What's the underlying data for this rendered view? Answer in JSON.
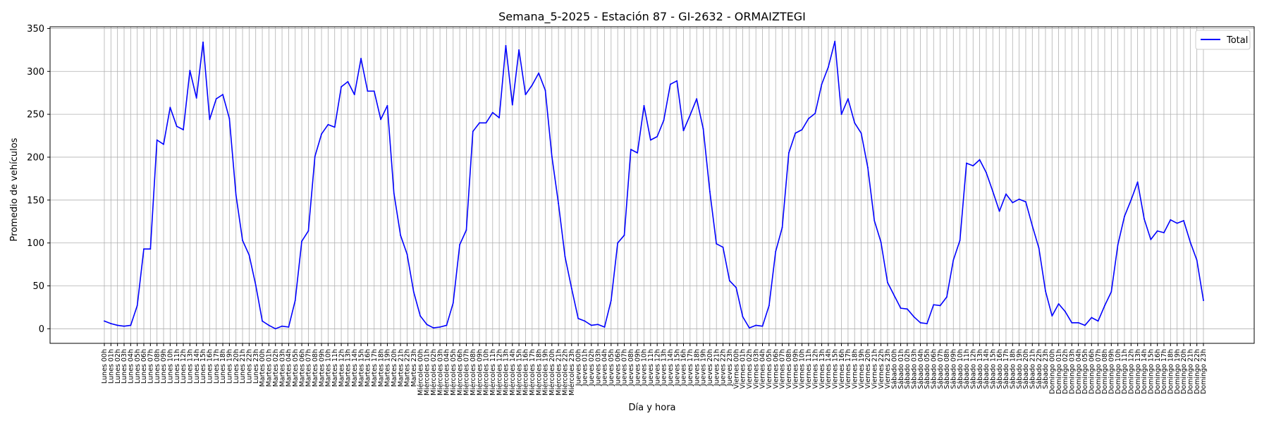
{
  "chart_data": {
    "type": "line",
    "title": "Semana_5-2025 - Estación 87 - GI-2632  - ORMAIZTEGI",
    "xlabel": "Día y hora",
    "ylabel": "Promedio de vehículos",
    "days": [
      "Lunes",
      "Martes",
      "Miércoles",
      "Jueves",
      "Viernes",
      "Sábado",
      "Domingo"
    ],
    "hours_per_day": 24,
    "yticks": [
      0,
      50,
      100,
      150,
      200,
      250,
      300,
      350
    ],
    "ylim": [
      -17,
      352
    ],
    "grid": true,
    "legend_position": "top-right",
    "series": [
      {
        "name": "Total",
        "color": "#0000ff",
        "values": [
          9,
          6,
          4,
          3,
          4,
          27,
          93,
          93,
          220,
          215,
          258,
          236,
          232,
          301,
          269,
          334,
          244,
          268,
          273,
          245,
          156,
          103,
          86,
          51,
          9,
          4,
          0,
          3,
          2,
          33,
          102,
          114,
          201,
          227,
          238,
          235,
          282,
          288,
          273,
          315,
          277,
          277,
          244,
          260,
          158,
          109,
          87,
          43,
          15,
          5,
          1,
          2,
          4,
          30,
          98,
          115,
          230,
          240,
          240,
          252,
          246,
          330,
          261,
          325,
          273,
          284,
          298,
          278,
          201,
          146,
          84,
          47,
          12,
          9,
          4,
          5,
          2,
          33,
          100,
          109,
          209,
          205,
          260,
          220,
          224,
          243,
          285,
          289,
          231,
          249,
          268,
          233,
          160,
          99,
          95,
          56,
          48,
          14,
          1,
          4,
          3,
          27,
          90,
          118,
          205,
          228,
          232,
          245,
          251,
          285,
          305,
          335,
          250,
          268,
          240,
          228,
          188,
          126,
          101,
          54,
          39,
          24,
          23,
          14,
          7,
          6,
          28,
          27,
          37,
          80,
          103,
          193,
          190,
          197,
          182,
          160,
          137,
          157,
          147,
          151,
          148,
          120,
          94,
          44,
          15,
          29,
          20,
          7,
          7,
          4,
          13,
          9,
          27,
          43,
          98,
          131,
          150,
          171,
          128,
          104,
          114,
          112,
          127,
          123,
          126,
          101,
          80,
          33
        ]
      }
    ]
  }
}
